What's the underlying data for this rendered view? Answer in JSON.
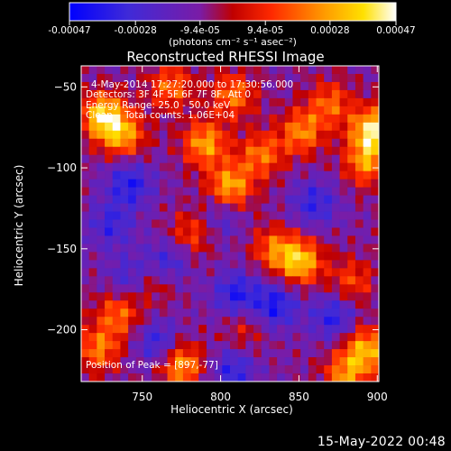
{
  "chart_data": {
    "type": "heatmap",
    "title": "Reconstructed RHESSI Image",
    "xlabel": "Heliocentric X (arcsec)",
    "ylabel": "Heliocentric Y (arcsec)",
    "xlim": [
      711,
      901
    ],
    "ylim": [
      -232,
      -37
    ],
    "x_ticks": [
      750,
      800,
      850,
      900
    ],
    "y_ticks": [
      -50,
      -100,
      -150,
      -200
    ],
    "colorbar": {
      "range": [
        -0.00047,
        0.00047
      ],
      "tick_values": [
        -0.00047,
        -0.00028,
        -9.4e-05,
        9.4e-05,
        0.00028,
        0.00047
      ],
      "tick_labels": [
        "-0.00047",
        "-0.00028",
        "-9.4e-05",
        "9.4e-05",
        "0.00028",
        "0.00047"
      ],
      "unit_label": "(photons cm⁻² s⁻¹ asec⁻²)"
    },
    "annotations": [
      "4-May-2014 17:27:20.000 to 17:30:56.000",
      "Detectors: 3F 4F 5F 6F 7F 8F, Att 0",
      "Energy Range: 25.0 - 50.0 keV",
      "Clean    Total counts: 1.06E+04",
      "Position of Peak = [897,-77]"
    ],
    "peak": [
      897,
      -77
    ],
    "hotspots": [
      {
        "x": 725,
        "y": -68,
        "value": 0.00044
      },
      {
        "x": 738,
        "y": -80,
        "value": 0.00032
      },
      {
        "x": 768,
        "y": -50,
        "value": 0.00026
      },
      {
        "x": 790,
        "y": -85,
        "value": 0.00035
      },
      {
        "x": 808,
        "y": -55,
        "value": 0.00028
      },
      {
        "x": 806,
        "y": -112,
        "value": 0.00038
      },
      {
        "x": 826,
        "y": -92,
        "value": 0.00027
      },
      {
        "x": 852,
        "y": -78,
        "value": 0.0003
      },
      {
        "x": 870,
        "y": -60,
        "value": 0.00024
      },
      {
        "x": 897,
        "y": -77,
        "value": 0.00047
      },
      {
        "x": 893,
        "y": -97,
        "value": 0.0003
      },
      {
        "x": 782,
        "y": -140,
        "value": 0.0002
      },
      {
        "x": 834,
        "y": -150,
        "value": 0.00025
      },
      {
        "x": 851,
        "y": -158,
        "value": 0.0004
      },
      {
        "x": 884,
        "y": -170,
        "value": 0.0002
      },
      {
        "x": 735,
        "y": -190,
        "value": 0.00026
      },
      {
        "x": 722,
        "y": -212,
        "value": 0.00028
      },
      {
        "x": 775,
        "y": -222,
        "value": 0.00035
      },
      {
        "x": 758,
        "y": -170,
        "value": 0.00018
      },
      {
        "x": 893,
        "y": -212,
        "value": 0.00036
      },
      {
        "x": 880,
        "y": -228,
        "value": 0.0003
      },
      {
        "x": 815,
        "y": -200,
        "value": 0.00012
      }
    ],
    "coldspots": [
      {
        "x": 742,
        "y": -110,
        "value": -0.0003
      },
      {
        "x": 765,
        "y": -160,
        "value": -0.00028
      },
      {
        "x": 742,
        "y": -168,
        "value": -0.00022
      },
      {
        "x": 810,
        "y": -178,
        "value": -0.0003
      },
      {
        "x": 835,
        "y": -185,
        "value": -0.00032
      },
      {
        "x": 872,
        "y": -192,
        "value": -0.00028
      },
      {
        "x": 800,
        "y": -130,
        "value": -0.0002
      },
      {
        "x": 860,
        "y": -122,
        "value": -0.00026
      },
      {
        "x": 730,
        "y": -135,
        "value": -0.00024
      },
      {
        "x": 808,
        "y": -225,
        "value": -0.00026
      },
      {
        "x": 760,
        "y": -208,
        "value": -0.00026
      }
    ],
    "background_level": -0.0001
  },
  "timestamp": "15-May-2022 00:48"
}
